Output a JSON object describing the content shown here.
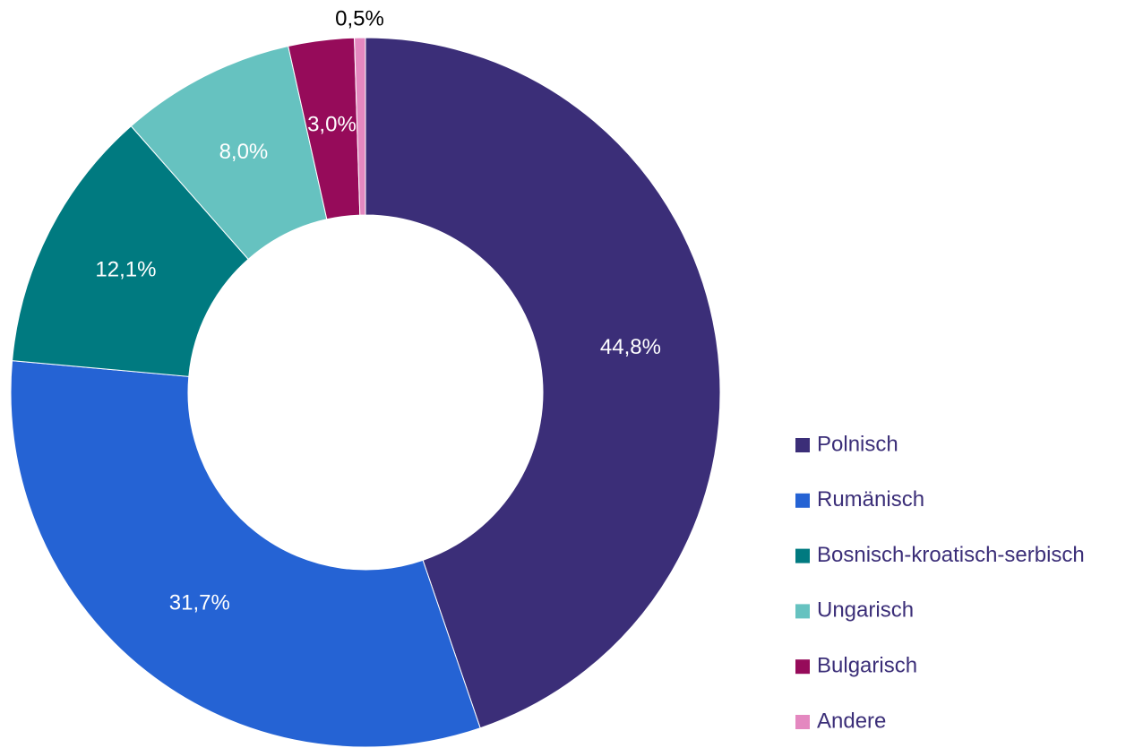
{
  "chart_data": {
    "type": "donut",
    "categories": [
      "Polnisch",
      "Rumänisch",
      "Bosnisch-kroatisch-serbisch",
      "Ungarisch",
      "Bulgarisch",
      "Andere"
    ],
    "values": [
      44.8,
      31.7,
      12.1,
      8.0,
      3.0,
      0.5
    ],
    "value_labels": [
      "44,8%",
      "31,7%",
      "12,1%",
      "8,0%",
      "3,0%",
      "0,5%"
    ],
    "colors": [
      "#3b2e78",
      "#2563d4",
      "#007a80",
      "#66c2c0",
      "#960b5a",
      "#e488c0"
    ],
    "legend": "right"
  }
}
